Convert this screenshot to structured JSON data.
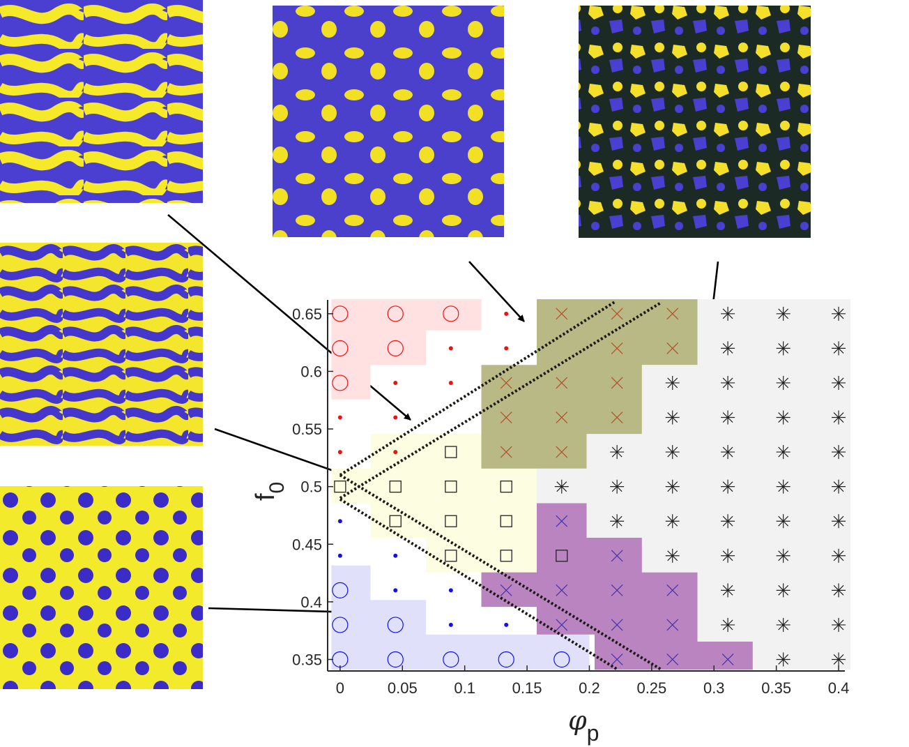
{
  "chart_data": {
    "type": "scatter",
    "title": "",
    "xlabel_symbol": "φ",
    "xlabel_sub": "p",
    "ylabel_symbol": "f",
    "ylabel_sub": "0",
    "xlim": [
      -0.01,
      0.405
    ],
    "ylim": [
      0.34,
      0.662
    ],
    "xticks": [
      0,
      0.05,
      0.1,
      0.15,
      0.2,
      0.25,
      0.3,
      0.35,
      0.4
    ],
    "xtick_labels": [
      "0",
      "0.05",
      "0.1",
      "0.15",
      "0.2",
      "0.25",
      "0.3",
      "0.35",
      "0.4"
    ],
    "yticks": [
      0.35,
      0.4,
      0.45,
      0.5,
      0.55,
      0.6,
      0.65
    ],
    "ytick_labels": [
      "0.35",
      "0.4",
      "0.45",
      "0.5",
      "0.55",
      "0.6",
      "0.65"
    ],
    "grid": false,
    "legend": "none",
    "colors": {
      "red": "#ee1111",
      "blue": "#1111ee",
      "black": "#222222",
      "brownX": "#b0502a",
      "purpleX": "#4433aa",
      "pink_region": "#ffe1e1",
      "blue_region": "#e0e0fa",
      "yellow_region": "#fdfde1",
      "olive_region": "#b9b985",
      "purple_region": "#b984bf",
      "grey_region": "#f2f2f2"
    },
    "x_grid_values": [
      0,
      0.0444,
      0.0889,
      0.1333,
      0.1778,
      0.2222,
      0.2667,
      0.3111,
      0.3556,
      0.4
    ],
    "y_grid_values": [
      0.35,
      0.38,
      0.41,
      0.44,
      0.47,
      0.5,
      0.53,
      0.56,
      0.59,
      0.62,
      0.65
    ],
    "series": [
      {
        "marker": "circle",
        "color": "red",
        "points": [
          [
            0,
            0.65
          ],
          [
            0.0444,
            0.65
          ],
          [
            0.0889,
            0.65
          ],
          [
            0,
            0.62
          ],
          [
            0.0444,
            0.62
          ],
          [
            0,
            0.59
          ]
        ]
      },
      {
        "marker": "dot",
        "color": "red",
        "points": [
          [
            0.1333,
            0.65
          ],
          [
            0.0889,
            0.62
          ],
          [
            0.1333,
            0.62
          ],
          [
            0.0444,
            0.59
          ],
          [
            0.0889,
            0.59
          ],
          [
            0,
            0.56
          ],
          [
            0.0444,
            0.56
          ],
          [
            0,
            0.53
          ],
          [
            0.0444,
            0.53
          ]
        ]
      },
      {
        "marker": "square",
        "color": "black",
        "points": [
          [
            0.0889,
            0.53
          ],
          [
            0,
            0.5
          ],
          [
            0.0444,
            0.5
          ],
          [
            0.0889,
            0.5
          ],
          [
            0.1333,
            0.5
          ],
          [
            0.0444,
            0.47
          ],
          [
            0.0889,
            0.47
          ],
          [
            0.1333,
            0.47
          ],
          [
            0.0889,
            0.44
          ],
          [
            0.1333,
            0.44
          ],
          [
            0.1778,
            0.44
          ]
        ]
      },
      {
        "marker": "dot",
        "color": "blue",
        "points": [
          [
            0,
            0.47
          ],
          [
            0,
            0.44
          ],
          [
            0.0444,
            0.44
          ],
          [
            0.0444,
            0.41
          ],
          [
            0.0889,
            0.41
          ],
          [
            0.0889,
            0.38
          ],
          [
            0.1333,
            0.38
          ]
        ]
      },
      {
        "marker": "circle",
        "color": "blue",
        "points": [
          [
            0,
            0.41
          ],
          [
            0,
            0.38
          ],
          [
            0.0444,
            0.38
          ],
          [
            0,
            0.35
          ],
          [
            0.0444,
            0.35
          ],
          [
            0.0889,
            0.35
          ],
          [
            0.1333,
            0.35
          ],
          [
            0.1778,
            0.35
          ]
        ]
      },
      {
        "marker": "x",
        "color": "brownX",
        "points": [
          [
            0.1778,
            0.65
          ],
          [
            0.2222,
            0.65
          ],
          [
            0.2667,
            0.65
          ],
          [
            0.2222,
            0.62
          ],
          [
            0.2667,
            0.62
          ],
          [
            0.1333,
            0.59
          ],
          [
            0.1778,
            0.59
          ],
          [
            0.2222,
            0.59
          ],
          [
            0.1333,
            0.56
          ],
          [
            0.1778,
            0.56
          ],
          [
            0.2222,
            0.56
          ],
          [
            0.1333,
            0.53
          ],
          [
            0.1778,
            0.53
          ]
        ]
      },
      {
        "marker": "x",
        "color": "purpleX",
        "points": [
          [
            0.1778,
            0.47
          ],
          [
            0.2222,
            0.44
          ],
          [
            0.1333,
            0.41
          ],
          [
            0.1778,
            0.41
          ],
          [
            0.2222,
            0.41
          ],
          [
            0.2667,
            0.41
          ],
          [
            0.1778,
            0.38
          ],
          [
            0.2222,
            0.38
          ],
          [
            0.2667,
            0.38
          ],
          [
            0.2222,
            0.35
          ],
          [
            0.2667,
            0.35
          ],
          [
            0.3111,
            0.35
          ]
        ]
      },
      {
        "marker": "asterisk",
        "color": "black",
        "points": [
          [
            0.3111,
            0.65
          ],
          [
            0.3556,
            0.65
          ],
          [
            0.4,
            0.65
          ],
          [
            0.3111,
            0.62
          ],
          [
            0.3556,
            0.62
          ],
          [
            0.4,
            0.62
          ],
          [
            0.2667,
            0.59
          ],
          [
            0.3111,
            0.59
          ],
          [
            0.3556,
            0.59
          ],
          [
            0.4,
            0.59
          ],
          [
            0.2667,
            0.56
          ],
          [
            0.3111,
            0.56
          ],
          [
            0.3556,
            0.56
          ],
          [
            0.4,
            0.56
          ],
          [
            0.2222,
            0.53
          ],
          [
            0.2667,
            0.53
          ],
          [
            0.3111,
            0.53
          ],
          [
            0.3556,
            0.53
          ],
          [
            0.4,
            0.53
          ],
          [
            0.1778,
            0.5
          ],
          [
            0.2222,
            0.5
          ],
          [
            0.2667,
            0.5
          ],
          [
            0.3111,
            0.5
          ],
          [
            0.3556,
            0.5
          ],
          [
            0.4,
            0.5
          ],
          [
            0.2222,
            0.47
          ],
          [
            0.2667,
            0.47
          ],
          [
            0.3111,
            0.47
          ],
          [
            0.3556,
            0.47
          ],
          [
            0.4,
            0.47
          ],
          [
            0.2667,
            0.44
          ],
          [
            0.3111,
            0.44
          ],
          [
            0.3556,
            0.44
          ],
          [
            0.4,
            0.44
          ],
          [
            0.3111,
            0.41
          ],
          [
            0.3556,
            0.41
          ],
          [
            0.4,
            0.41
          ],
          [
            0.3111,
            0.38
          ],
          [
            0.3556,
            0.38
          ],
          [
            0.4,
            0.38
          ],
          [
            0.3556,
            0.35
          ],
          [
            0.4,
            0.35
          ]
        ]
      }
    ],
    "regions": [
      {
        "color": "pink_region",
        "polygon": [
          [
            -0.007,
            0.6626
          ],
          [
            0.1133,
            0.6626
          ],
          [
            0.1133,
            0.6356
          ],
          [
            0.0689,
            0.6356
          ],
          [
            0.0689,
            0.6056
          ],
          [
            0.0244,
            0.6056
          ],
          [
            0.0244,
            0.5756
          ],
          [
            -0.007,
            0.5756
          ]
        ]
      },
      {
        "color": "blue_region",
        "polygon": [
          [
            -0.007,
            0.4316
          ],
          [
            0.0244,
            0.4316
          ],
          [
            0.0244,
            0.4016
          ],
          [
            0.0689,
            0.4016
          ],
          [
            0.0689,
            0.3716
          ],
          [
            0.2,
            0.3716
          ],
          [
            0.2,
            0.341
          ],
          [
            -0.007,
            0.341
          ]
        ]
      },
      {
        "color": "yellow_region",
        "polygon": [
          [
            0.0689,
            0.5456
          ],
          [
            0.1133,
            0.5456
          ],
          [
            0.1133,
            0.5156
          ],
          [
            0.1578,
            0.5156
          ],
          [
            0.1578,
            0.4556
          ],
          [
            0.1978,
            0.4556
          ],
          [
            0.1978,
            0.4256
          ],
          [
            0.0689,
            0.4256
          ],
          [
            0.0689,
            0.4556
          ],
          [
            0.0244,
            0.4556
          ],
          [
            0.0244,
            0.4856
          ],
          [
            -0.007,
            0.4856
          ],
          [
            -0.007,
            0.5156
          ],
          [
            0.0244,
            0.5156
          ],
          [
            0.0244,
            0.5456
          ]
        ]
      },
      {
        "color": "olive_region",
        "polygon": [
          [
            0.1578,
            0.6626
          ],
          [
            0.2867,
            0.6626
          ],
          [
            0.2867,
            0.6056
          ],
          [
            0.2422,
            0.6056
          ],
          [
            0.2422,
            0.5456
          ],
          [
            0.1978,
            0.5456
          ],
          [
            0.1978,
            0.5156
          ],
          [
            0.1133,
            0.5156
          ],
          [
            0.1133,
            0.6056
          ],
          [
            0.1578,
            0.6056
          ]
        ]
      },
      {
        "color": "purple_region",
        "polygon": [
          [
            0.1578,
            0.4856
          ],
          [
            0.1978,
            0.4856
          ],
          [
            0.1978,
            0.4556
          ],
          [
            0.2422,
            0.4556
          ],
          [
            0.2422,
            0.4256
          ],
          [
            0.2867,
            0.4256
          ],
          [
            0.2867,
            0.3656
          ],
          [
            0.3311,
            0.3656
          ],
          [
            0.3311,
            0.341
          ],
          [
            0.2042,
            0.341
          ],
          [
            0.2042,
            0.3716
          ],
          [
            0.1578,
            0.3716
          ],
          [
            0.1578,
            0.3956
          ],
          [
            0.1133,
            0.3956
          ],
          [
            0.1133,
            0.4256
          ],
          [
            0.1578,
            0.4256
          ]
        ]
      },
      {
        "color": "grey_region",
        "polygon": [
          [
            0.2867,
            0.6626
          ],
          [
            0.4095,
            0.6626
          ],
          [
            0.4095,
            0.341
          ],
          [
            0.3311,
            0.341
          ],
          [
            0.3311,
            0.3656
          ],
          [
            0.2867,
            0.3656
          ],
          [
            0.2867,
            0.4256
          ],
          [
            0.2422,
            0.4256
          ],
          [
            0.2422,
            0.4556
          ],
          [
            0.1978,
            0.4556
          ],
          [
            0.1978,
            0.4856
          ],
          [
            0.1578,
            0.4856
          ],
          [
            0.1578,
            0.5156
          ],
          [
            0.1978,
            0.5156
          ],
          [
            0.1978,
            0.5456
          ],
          [
            0.2422,
            0.5456
          ],
          [
            0.2422,
            0.6056
          ],
          [
            0.2867,
            0.6056
          ]
        ]
      }
    ],
    "dotted_lines": [
      {
        "from": [
          0,
          0.51
        ],
        "to": [
          0.22,
          0.66
        ]
      },
      {
        "from": [
          0,
          0.49
        ],
        "to": [
          0.258,
          0.66
        ]
      },
      {
        "from": [
          0,
          0.489
        ],
        "to": [
          0.223,
          0.341
        ]
      },
      {
        "from": [
          0,
          0.51
        ],
        "to": [
          0.258,
          0.341
        ]
      }
    ],
    "insets": [
      {
        "name": "inset-labyrinth-sparse",
        "arrow_to": [
          0.057,
          0.559
        ]
      },
      {
        "name": "inset-labyrinth-dense",
        "arrow_to": [
          0.025,
          0.5
        ]
      },
      {
        "name": "inset-spots",
        "arrow_to": [
          0.034,
          0.39
        ]
      },
      {
        "name": "inset-network-mixed",
        "arrow_to": [
          0.152,
          0.645
        ]
      },
      {
        "name": "inset-network-dense",
        "arrow_to": [
          0.29,
          0.51
        ]
      }
    ]
  }
}
